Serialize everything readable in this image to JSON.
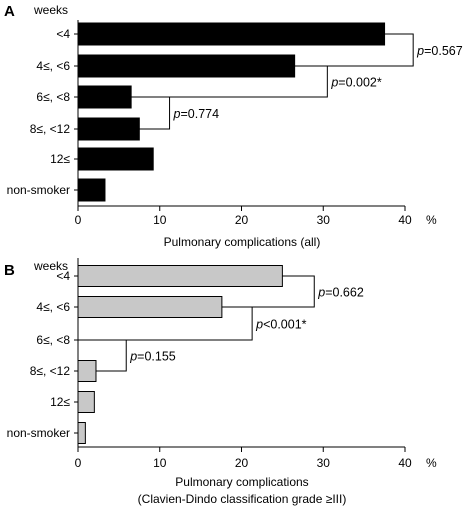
{
  "chart_data": [
    {
      "type": "bar",
      "orientation": "horizontal",
      "panel_label": "A",
      "category_header": "weeks",
      "categories": [
        "<4",
        "4≤, <6",
        "6≤, <8",
        "8≤, <12",
        "12≤",
        "non-smoker"
      ],
      "values": [
        37.5,
        26.5,
        6.5,
        7.5,
        9.2,
        3.3
      ],
      "bar_color": "#000000",
      "xlim": [
        0,
        40
      ],
      "xticks": [
        "0",
        "10",
        "20",
        "30",
        "40"
      ],
      "x_unit": "%",
      "xlabel": [
        "Pulmonary complications (all)"
      ],
      "comparisons": [
        {
          "from": 0,
          "to": 1,
          "label": "p=0.567",
          "bracket_at": 41.0
        },
        {
          "from": 1,
          "to": 2,
          "label": "p=0.002*",
          "bracket_at": 30.5
        },
        {
          "from": 2,
          "to": 3,
          "label": "p=0.774",
          "bracket_at": 11.2
        }
      ]
    },
    {
      "type": "bar",
      "orientation": "horizontal",
      "panel_label": "B",
      "category_header": "weeks",
      "categories": [
        "<4",
        "4≤, <6",
        "6≤, <8",
        "8≤, <12",
        "12≤",
        "non-smoker"
      ],
      "values": [
        25.0,
        17.6,
        0,
        2.2,
        2.0,
        0.9
      ],
      "bar_color": "#c8c8c8",
      "xlim": [
        0,
        40
      ],
      "xticks": [
        "0",
        "10",
        "20",
        "30",
        "40"
      ],
      "x_unit": "%",
      "xlabel": [
        "Pulmonary complications",
        "(Clavien-Dindo classification grade ≥III)"
      ],
      "comparisons": [
        {
          "from": 0,
          "to": 1,
          "label": "p=0.662",
          "bracket_at": 28.9
        },
        {
          "from": 1,
          "to": 2,
          "label": "p<0.001*",
          "bracket_at": 21.3
        },
        {
          "from": 2,
          "to": 3,
          "label": "p=0.155",
          "bracket_at": 5.9
        }
      ]
    }
  ]
}
